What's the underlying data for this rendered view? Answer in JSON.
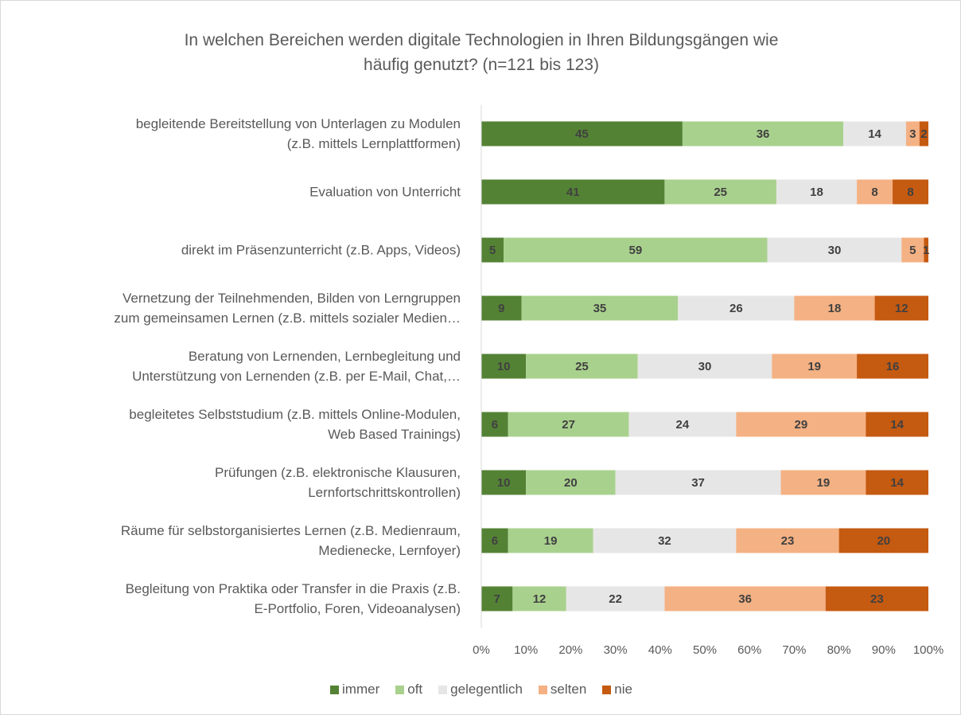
{
  "chart_data": {
    "type": "stacked_bar_horizontal",
    "title": "In welchen Bereichen werden digitale Technologien in Ihren Bildungsgängen wie\nhäufig genutzt? (n=121 bis 123)",
    "categories": [
      "begleitende Bereitstellung von Unterlagen zu Modulen\n(z.B. mittels Lernplattformen)",
      "Evaluation von Unterricht",
      "direkt im Präsenzunterricht (z.B. Apps, Videos)",
      "Vernetzung der Teilnehmenden, Bilden von Lerngruppen\nzum gemeinsamen Lernen (z.B. mittels sozialer Medien…",
      "Beratung von Lernenden, Lernbegleitung und\nUnterstützung von Lernenden (z.B. per E-Mail, Chat,…",
      "begleitetes Selbststudium (z.B. mittels Online-Modulen,\nWeb Based Trainings)",
      "Prüfungen (z.B. elektronische Klausuren,\nLernfortschrittskontrollen)",
      "Räume für selbstorganisiertes Lernen (z.B. Medienraum,\nMedienecke, Lernfoyer)",
      "Begleitung von Praktika oder Transfer in die Praxis (z.B.\nE-Portfolio, Foren, Videoanalysen)"
    ],
    "series": [
      {
        "name": "immer",
        "color": "#548235",
        "values": [
          45,
          41,
          5,
          9,
          10,
          6,
          10,
          6,
          7
        ]
      },
      {
        "name": "oft",
        "color": "#a9d18e",
        "values": [
          36,
          25,
          59,
          35,
          25,
          27,
          20,
          19,
          12
        ]
      },
      {
        "name": "gelegentlich",
        "color": "#e7e6e6",
        "values": [
          14,
          18,
          30,
          26,
          30,
          24,
          37,
          32,
          22
        ]
      },
      {
        "name": "selten",
        "color": "#f4b183",
        "values": [
          3,
          8,
          5,
          18,
          19,
          29,
          19,
          23,
          36
        ]
      },
      {
        "name": "nie",
        "color": "#c55a11",
        "values": [
          2,
          8,
          1,
          12,
          16,
          14,
          14,
          20,
          23
        ]
      }
    ],
    "xlim": [
      0,
      100
    ],
    "xticks": [
      {
        "value": 0,
        "label": "0%"
      },
      {
        "value": 10,
        "label": "10%"
      },
      {
        "value": 20,
        "label": "20%"
      },
      {
        "value": 30,
        "label": "30%"
      },
      {
        "value": 40,
        "label": "40%"
      },
      {
        "value": 50,
        "label": "50%"
      },
      {
        "value": 60,
        "label": "60%"
      },
      {
        "value": 70,
        "label": "70%"
      },
      {
        "value": 80,
        "label": "80%"
      },
      {
        "value": 90,
        "label": "90%"
      },
      {
        "value": 100,
        "label": "100%"
      }
    ],
    "grid": false,
    "legend": "bottom"
  }
}
